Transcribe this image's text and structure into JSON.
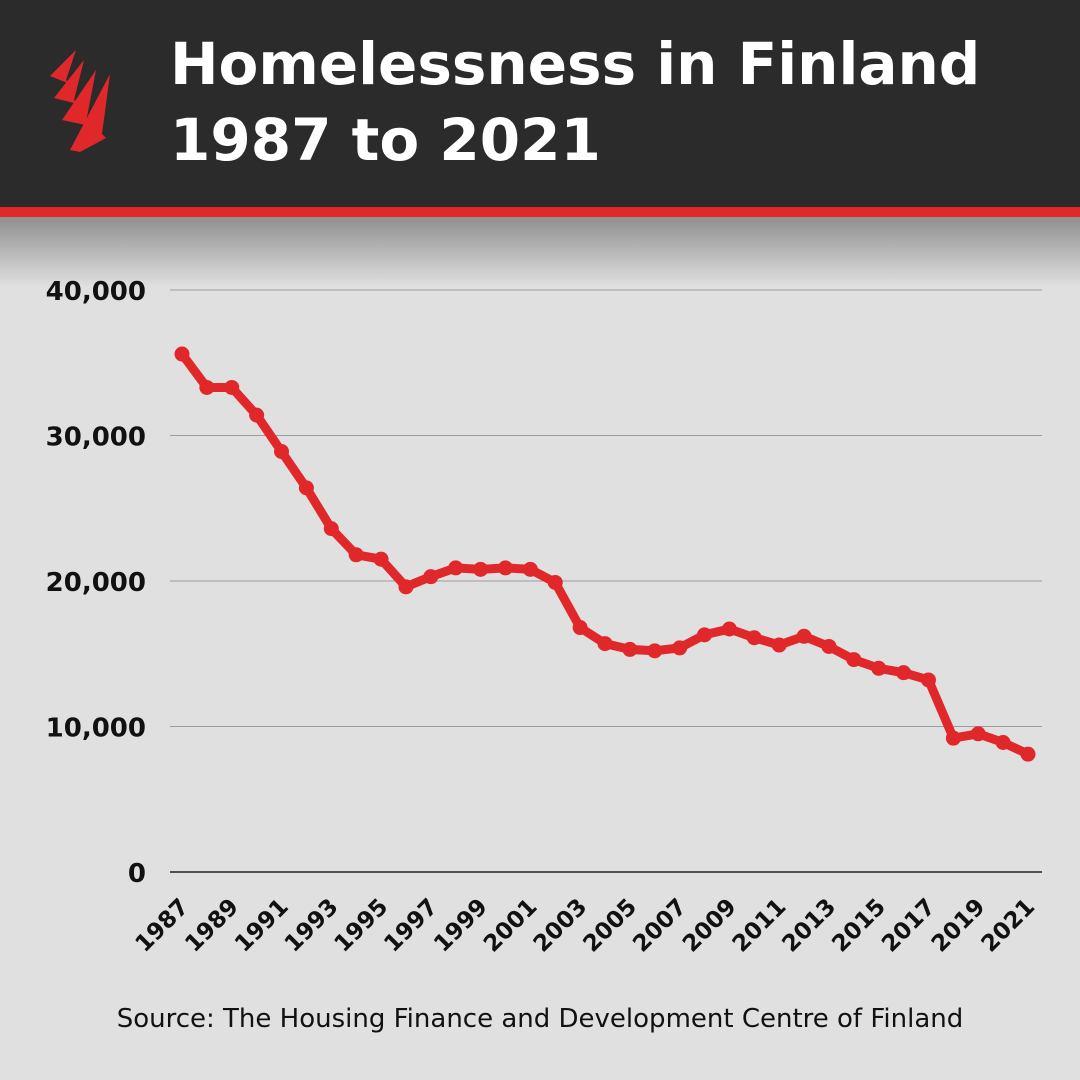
{
  "header": {
    "title_line1": "Homelessness in Finland",
    "title_line2": "1987 to 2021",
    "logo_icon": "sbs-flame-logo-icon"
  },
  "colors": {
    "accent": "#e0282a",
    "header_bg": "#2b2b2b",
    "background": "#e1e0e0"
  },
  "source": "Source: The Housing Finance and Development Centre of Finland",
  "chart_data": {
    "type": "line",
    "title": "Homelessness in Finland 1987 to 2021",
    "xlabel": "",
    "ylabel": "",
    "ylim": [
      0,
      40000
    ],
    "yticks": [
      0,
      10000,
      20000,
      30000,
      40000
    ],
    "ytick_labels": [
      "0",
      "10,000",
      "20,000",
      "30,000",
      "40,000"
    ],
    "xtick_labels": [
      "1987",
      "1989",
      "1991",
      "1993",
      "1995",
      "1997",
      "1999",
      "2001",
      "2003",
      "2005",
      "2007",
      "2009",
      "2011",
      "2013",
      "2015",
      "2017",
      "2019",
      "2021"
    ],
    "grid": true,
    "legend": "none",
    "x": [
      1987,
      1988,
      1989,
      1990,
      1991,
      1992,
      1993,
      1994,
      1995,
      1996,
      1997,
      1998,
      1999,
      2000,
      2001,
      2002,
      2003,
      2004,
      2005,
      2006,
      2007,
      2008,
      2009,
      2010,
      2011,
      2012,
      2013,
      2014,
      2015,
      2016,
      2017,
      2018,
      2019,
      2020,
      2021
    ],
    "series": [
      {
        "color": "#e0282a",
        "values": [
          35600,
          33300,
          33300,
          31400,
          28900,
          26400,
          23600,
          21800,
          21500,
          19600,
          20300,
          20900,
          20800,
          20900,
          20800,
          19900,
          16800,
          15700,
          15300,
          15200,
          15400,
          16300,
          16700,
          16100,
          15600,
          16200,
          15500,
          14600,
          14000,
          13700,
          13200,
          9200,
          9500,
          8900,
          8100
        ]
      }
    ]
  }
}
